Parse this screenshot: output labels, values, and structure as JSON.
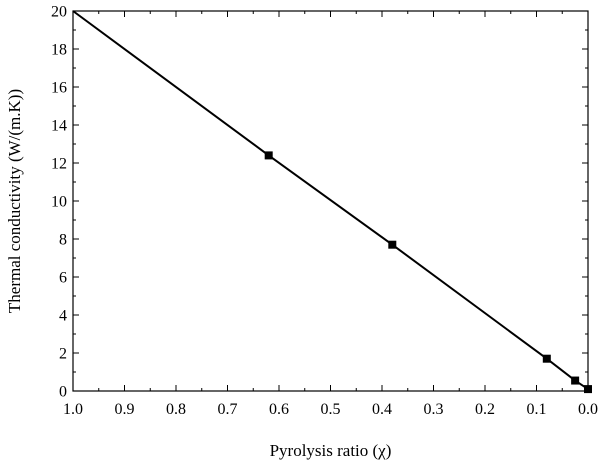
{
  "chart_data": {
    "type": "line",
    "xlabel": "Pyrolysis ratio (χ)",
    "ylabel": "Thermal conductivity (W/(m.K))",
    "xlim": [
      1.0,
      0.0
    ],
    "ylim": [
      0,
      20
    ],
    "x_reversed": true,
    "xticks": [
      "1.0",
      "0.9",
      "0.8",
      "0.7",
      "0.6",
      "0.5",
      "0.4",
      "0.3",
      "0.2",
      "0.1",
      "0.0"
    ],
    "yticks": [
      "0",
      "2",
      "4",
      "6",
      "8",
      "10",
      "12",
      "14",
      "16",
      "18",
      "20"
    ],
    "grid": false,
    "series": [
      {
        "x": [
          1.0,
          0.62,
          0.38,
          0.08,
          0.025,
          0.0
        ],
        "y": [
          20.0,
          12.4,
          7.7,
          1.7,
          0.55,
          0.1
        ],
        "markers": [
          false,
          true,
          true,
          true,
          true,
          true
        ],
        "color": "#000000"
      }
    ]
  }
}
